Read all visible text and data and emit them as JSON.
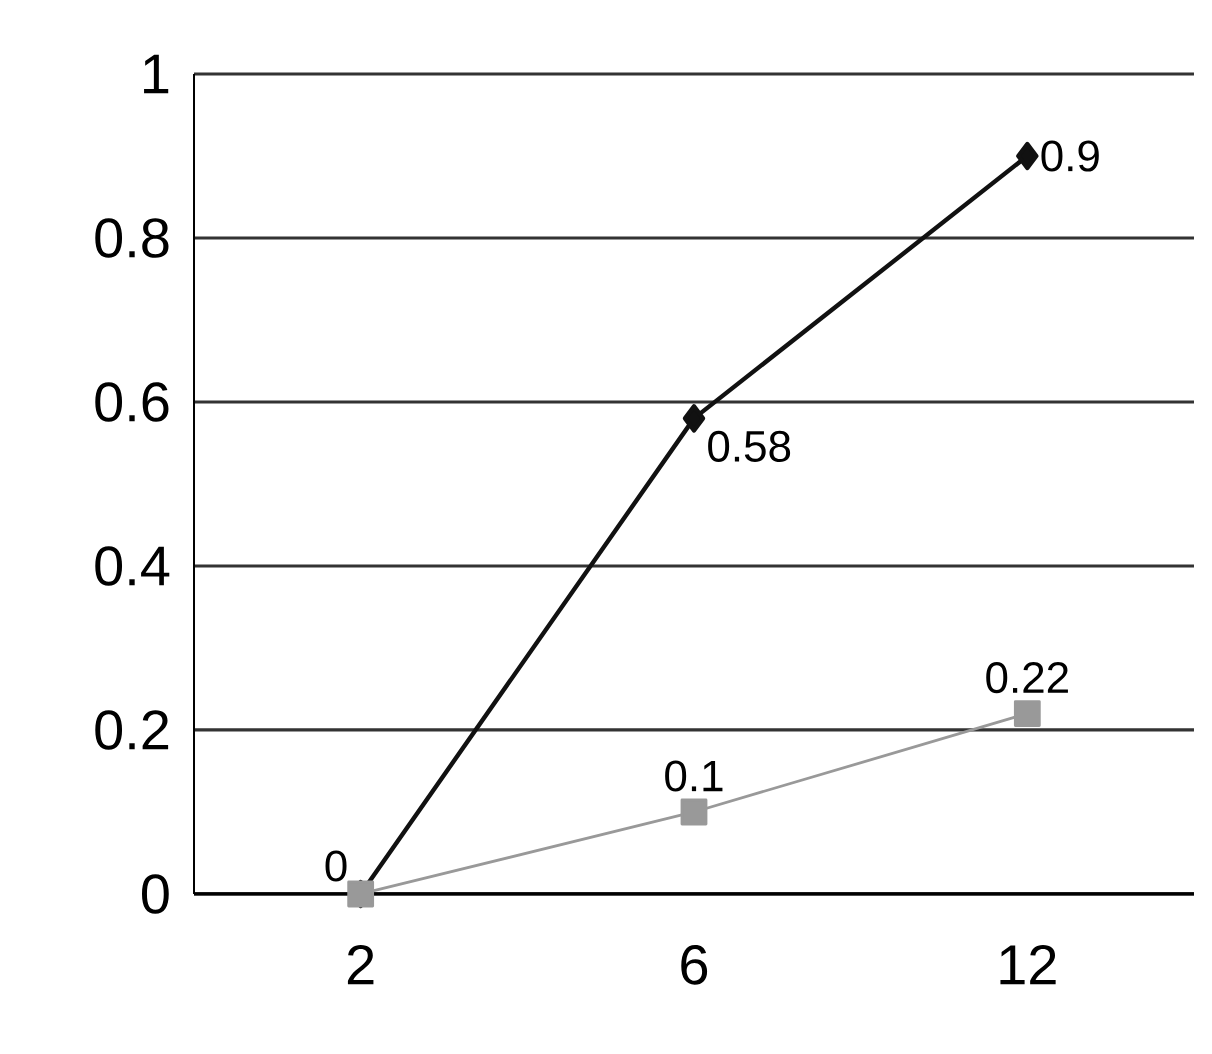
{
  "chart_data": {
    "type": "line",
    "categories": [
      "2",
      "6",
      "12"
    ],
    "series": [
      {
        "color": "#111111",
        "marker": "diamond",
        "values": [
          0,
          0.58,
          0.9
        ],
        "value_labels": [
          null,
          "0.58",
          "0.9"
        ]
      },
      {
        "color": "#999999",
        "marker": "square",
        "values": [
          0,
          0.1,
          0.22
        ],
        "value_labels": [
          "0",
          "0.1",
          "0.22"
        ]
      }
    ],
    "ylim": [
      0,
      1
    ],
    "yticks": [
      0,
      0.2,
      0.4,
      0.6,
      0.8,
      1
    ],
    "grid": "y"
  }
}
